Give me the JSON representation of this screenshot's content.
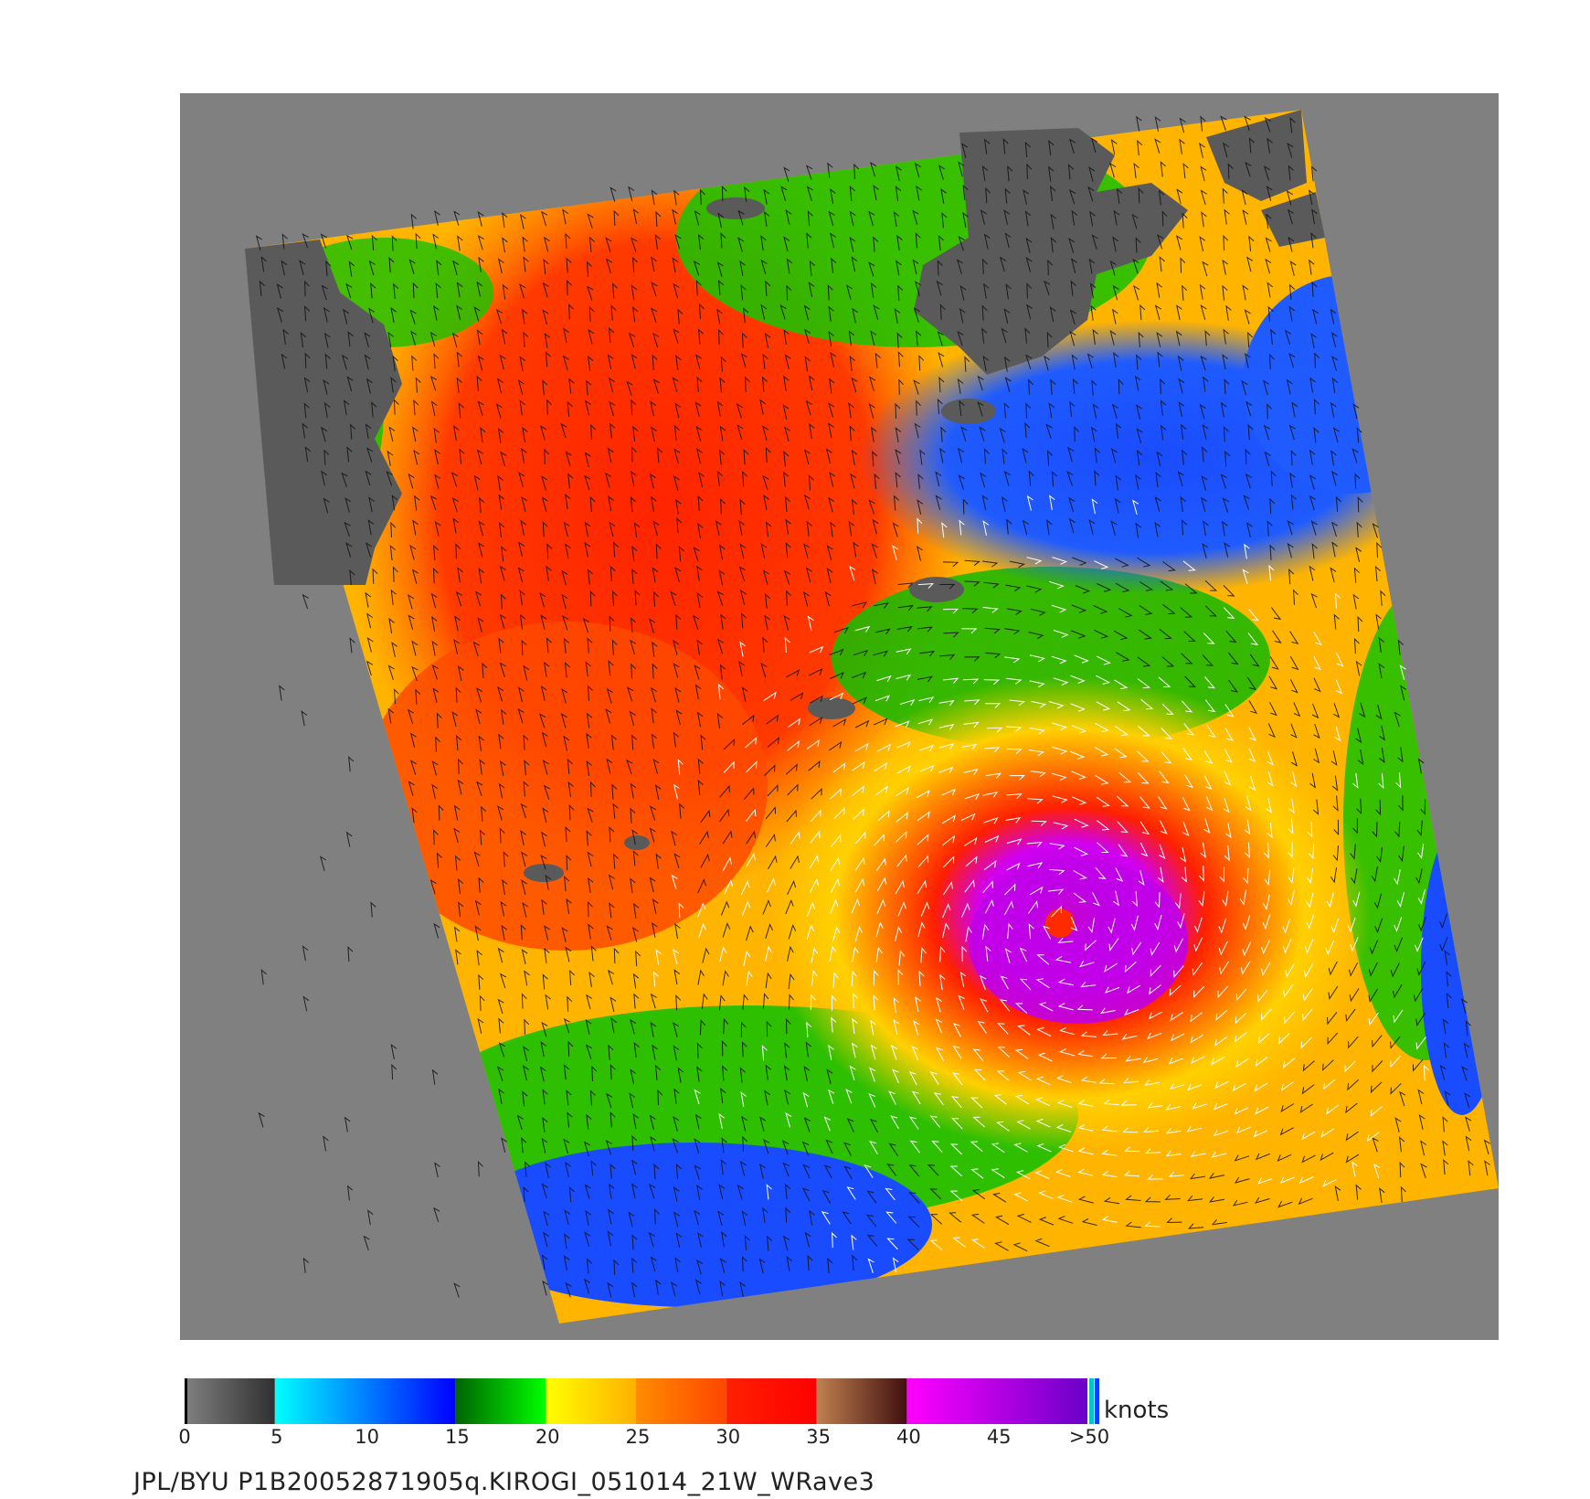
{
  "colors": {
    "background": "#ffffff",
    "no_data": "#808080",
    "land": "#5a5a5a",
    "barb_low": "#111111",
    "barb_high": "#ffffff"
  },
  "colorbar": {
    "units": "knots",
    "tick_labels": [
      "0",
      "5",
      "10",
      "15",
      "20",
      "25",
      "30",
      "35",
      "40",
      "45",
      ">50"
    ],
    "segments": [
      {
        "from": 0,
        "to": 5,
        "colors": [
          "#808080",
          "#303030"
        ]
      },
      {
        "from": 5,
        "to": 15,
        "colors": [
          "#00ffff",
          "#0000ff"
        ]
      },
      {
        "from": 15,
        "to": 20,
        "colors": [
          "#006400",
          "#00ff00"
        ]
      },
      {
        "from": 20,
        "to": 25,
        "colors": [
          "#ffff00",
          "#ffb000"
        ]
      },
      {
        "from": 25,
        "to": 30,
        "colors": [
          "#ff8c00",
          "#ff4500"
        ]
      },
      {
        "from": 30,
        "to": 35,
        "colors": [
          "#ff2000",
          "#ff0000"
        ]
      },
      {
        "from": 35,
        "to": 40,
        "colors": [
          "#c08050",
          "#401010"
        ]
      },
      {
        "from": 40,
        "to": 50,
        "colors": [
          "#ff00ff",
          "#6a00c8"
        ]
      }
    ]
  },
  "footer": {
    "text": "JPL/BYU  P1B20052871905q.KIROGI_051014_21W_WRave3"
  }
}
